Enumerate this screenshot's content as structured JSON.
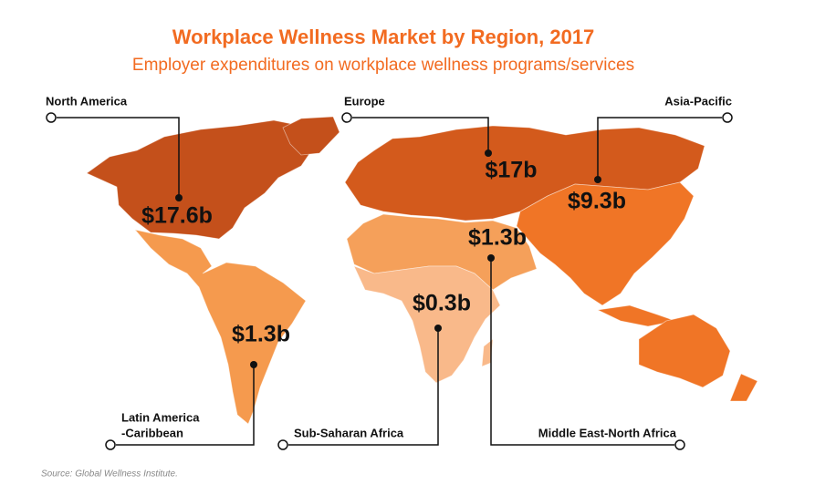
{
  "header": {
    "title": "Workplace Wellness Market by Region, 2017",
    "subtitle": "Employer expenditures on workplace wellness programs/services"
  },
  "regions": [
    {
      "name": "North America",
      "value": "$17.6b"
    },
    {
      "name": "Europe",
      "value": "$17b"
    },
    {
      "name": "Asia-Pacific",
      "value": "$9.3b"
    },
    {
      "name": "Middle East-North Africa",
      "value": "$1.3b"
    },
    {
      "name": "Sub-Saharan Africa",
      "value": "$0.3b"
    },
    {
      "name_lines": [
        "Latin America",
        "-Caribbean"
      ],
      "value": "$1.3b"
    }
  ],
  "source": "Source: Global Wellness Institute."
}
